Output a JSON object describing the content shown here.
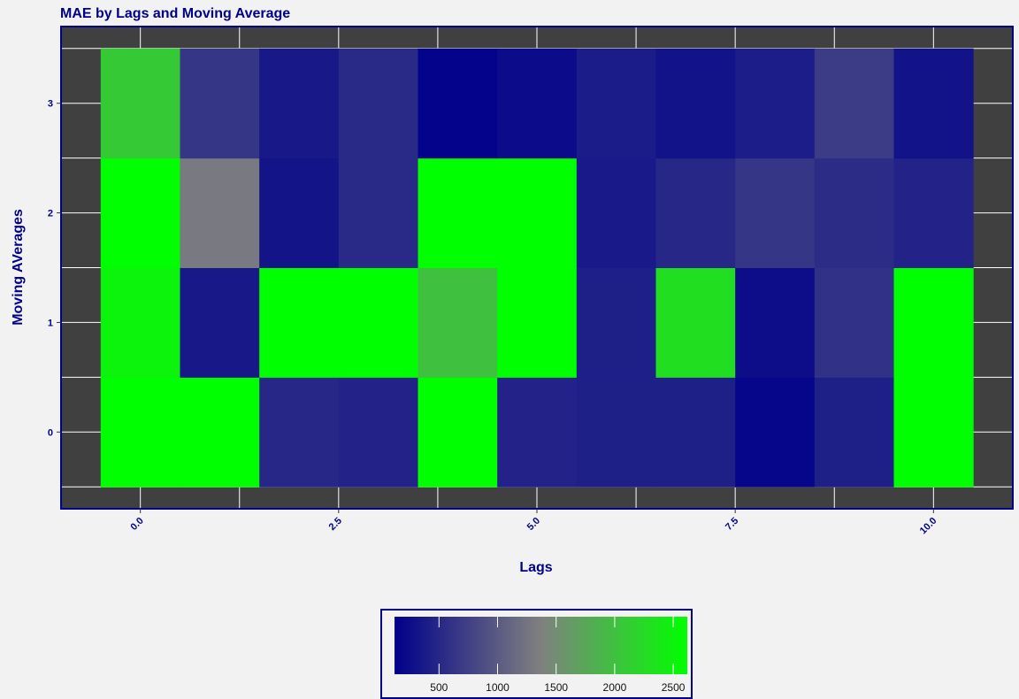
{
  "chart_data": {
    "type": "heatmap",
    "title": "MAE by Lags and Moving Average",
    "xlabel": "Lags",
    "ylabel": "Moving AVerages",
    "x": [
      0,
      1,
      2,
      3,
      4,
      5,
      6,
      7,
      8,
      9,
      10
    ],
    "y": [
      0,
      1,
      2,
      3
    ],
    "xlim": [
      -1,
      11
    ],
    "ylim": [
      -0.7,
      3.7
    ],
    "x_ticks": [
      {
        "value": 0,
        "label": "0.0"
      },
      {
        "value": 2.5,
        "label": "2.5"
      },
      {
        "value": 5,
        "label": "5.0"
      },
      {
        "value": 7.5,
        "label": "7.5"
      },
      {
        "value": 10,
        "label": "10.0"
      }
    ],
    "y_ticks": [
      {
        "value": 0,
        "label": "0"
      },
      {
        "value": 1,
        "label": "1"
      },
      {
        "value": 2,
        "label": "2"
      },
      {
        "value": 3,
        "label": "3"
      }
    ],
    "grid": true,
    "z": [
      [
        3000,
        3000,
        500,
        450,
        2700,
        450,
        420,
        420,
        180,
        420,
        3000
      ],
      [
        2500,
        350,
        3000,
        3000,
        2000,
        3000,
        420,
        2300,
        250,
        600,
        3000
      ],
      [
        3000,
        1300,
        320,
        520,
        3000,
        3000,
        360,
        500,
        650,
        550,
        450
      ],
      [
        2100,
        650,
        350,
        520,
        150,
        240,
        380,
        300,
        400,
        700,
        300
      ]
    ],
    "legend": {
      "position": "bottom",
      "ticks": [
        500,
        1000,
        1500,
        2000,
        2500
      ],
      "min": 120,
      "max": 2620,
      "low_color": "#00008b",
      "mid_color": "#808080",
      "high_color": "#00ff00"
    },
    "colors": {
      "background": "#f2f2f2",
      "panel": "#404040",
      "panel_border": "#00008b",
      "text": "#00008b"
    }
  }
}
